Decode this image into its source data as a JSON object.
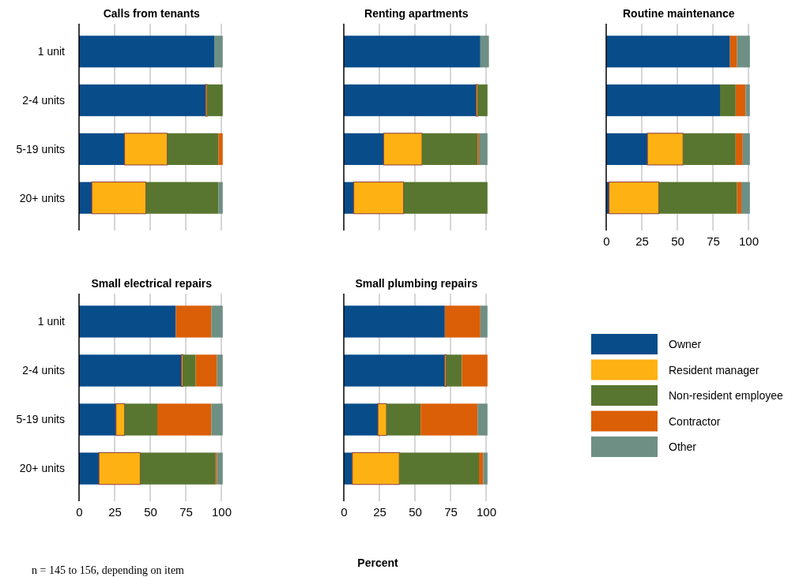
{
  "chart_data": [
    {
      "type": "bar",
      "orientation": "horizontal",
      "stacked": true,
      "title": "Calls from tenants",
      "categories": [
        "1 unit",
        "2-4 units",
        "5-19 units",
        "20+ units"
      ],
      "xlim": [
        0,
        102
      ],
      "xticks": [
        0,
        25,
        50,
        75,
        100
      ],
      "grid": "x",
      "tick_labels": "y",
      "series": [
        {
          "color": "#084c8a",
          "values": [
            95,
            89,
            32,
            9
          ]
        },
        {
          "color": "#feb113",
          "values": [
            0,
            1,
            30,
            38
          ]
        },
        {
          "color": "#587630",
          "values": [
            0,
            11,
            36,
            51
          ]
        },
        {
          "color": "#db5f06",
          "values": [
            0,
            0,
            3,
            0
          ]
        },
        {
          "color": "#6e8f84",
          "values": [
            6,
            0,
            0,
            3
          ]
        }
      ]
    },
    {
      "type": "bar",
      "orientation": "horizontal",
      "stacked": true,
      "title": "Renting apartments",
      "categories": [
        null,
        null,
        null,
        null
      ],
      "xlim": [
        0,
        102
      ],
      "xticks": [
        0,
        25,
        50,
        75,
        100
      ],
      "grid": "x",
      "tick_labels": false,
      "series": [
        {
          "color": "#084c8a",
          "values": [
            96,
            93,
            28,
            7
          ]
        },
        {
          "color": "#feb113",
          "values": [
            0,
            1,
            27,
            35
          ]
        },
        {
          "color": "#587630",
          "values": [
            0,
            7,
            39,
            59
          ]
        },
        {
          "color": "#db5f06",
          "values": [
            0,
            0,
            1,
            0
          ]
        },
        {
          "color": "#6e8f84",
          "values": [
            6,
            0,
            6,
            0
          ]
        }
      ]
    },
    {
      "type": "bar",
      "orientation": "horizontal",
      "stacked": true,
      "title": "Routine maintenance",
      "categories": [
        null,
        null,
        null,
        null
      ],
      "xlim": [
        0,
        102
      ],
      "xticks": [
        0,
        25,
        50,
        75,
        100
      ],
      "grid": "x",
      "tick_labels": "x",
      "series": [
        {
          "color": "#084c8a",
          "values": [
            87,
            80,
            29,
            2
          ]
        },
        {
          "color": "#feb113",
          "values": [
            0,
            0,
            25,
            35
          ]
        },
        {
          "color": "#587630",
          "values": [
            0,
            11,
            37,
            55
          ]
        },
        {
          "color": "#db5f06",
          "values": [
            5,
            7,
            5,
            3
          ]
        },
        {
          "color": "#6e8f84",
          "values": [
            9,
            3,
            5,
            6
          ]
        }
      ]
    },
    {
      "type": "bar",
      "orientation": "horizontal",
      "stacked": true,
      "title": "Small electrical repairs",
      "categories": [
        "1 unit",
        "2-4 units",
        "5-19 units",
        "20+ units"
      ],
      "xlim": [
        0,
        102
      ],
      "xticks": [
        0,
        25,
        50,
        75,
        100
      ],
      "grid": "x",
      "series": [
        {
          "color": "#084c8a",
          "values": [
            68,
            72,
            26,
            14
          ]
        },
        {
          "color": "#feb113",
          "values": [
            0,
            1,
            6,
            29
          ]
        },
        {
          "color": "#587630",
          "values": [
            0,
            9,
            23,
            53
          ]
        },
        {
          "color": "#db5f06",
          "values": [
            25,
            15,
            38,
            1
          ]
        },
        {
          "color": "#6e8f84",
          "values": [
            8,
            4,
            8,
            4
          ]
        }
      ]
    },
    {
      "type": "bar",
      "orientation": "horizontal",
      "stacked": true,
      "title": "Small plumbing repairs",
      "categories": [
        null,
        null,
        null,
        null
      ],
      "xlim": [
        0,
        102
      ],
      "xticks": [
        0,
        25,
        50,
        75,
        100
      ],
      "grid": "x",
      "tick_labels": "x",
      "legend": "right",
      "xlabel": "Percent",
      "annotations": [
        "n = 145 to 156, depending on item"
      ],
      "series": [
        {
          "name": "Owner",
          "color": "#084c8a",
          "values": [
            71,
            71,
            24,
            6
          ]
        },
        {
          "name": "Resident manager",
          "color": "#feb113",
          "values": [
            0,
            1,
            6,
            33
          ]
        },
        {
          "name": "Non-resident employee",
          "color": "#587630",
          "values": [
            0,
            11,
            24,
            56
          ]
        },
        {
          "name": "Contractor",
          "color": "#db5f06",
          "values": [
            25,
            18,
            40,
            3
          ]
        },
        {
          "name": "Other",
          "color": "#6e8f84",
          "values": [
            5,
            0,
            7,
            3
          ]
        }
      ]
    }
  ]
}
